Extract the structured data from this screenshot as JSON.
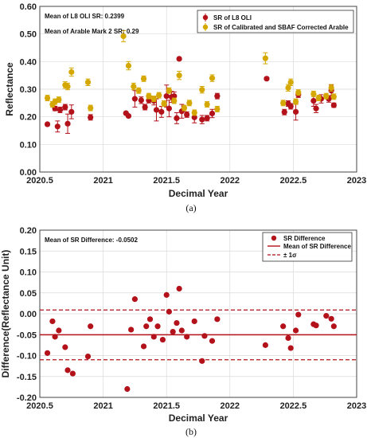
{
  "colors": {
    "red": "#b3121b",
    "gold": "#d4a800",
    "grid": "#d9d9d9",
    "axis": "#444444"
  },
  "chart_data": [
    {
      "type": "scatter",
      "caption": "(a)",
      "xlabel": "Decimal Year",
      "ylabel": "Reflectance",
      "xlim": [
        2020.5,
        2023
      ],
      "ylim": [
        0,
        0.6
      ],
      "xticks": [
        2020.5,
        2021,
        2021.5,
        2022,
        2022.5,
        2023
      ],
      "xtick_labels": [
        "2020.5",
        "2021",
        "2021.5",
        "2022",
        "2022.5",
        "2023"
      ],
      "yticks": [
        0,
        0.1,
        0.2,
        0.3,
        0.4,
        0.5,
        0.6
      ],
      "ytick_labels": [
        "0.00",
        "0.10",
        "0.20",
        "0.30",
        "0.40",
        "0.50",
        "0.60"
      ],
      "grid": true,
      "legend_position": "top-right",
      "annotations": [
        "Mean of L8 OLI SR: 0.2399",
        "Mean of Arable Mark 2 SR: 0.29"
      ],
      "series": [
        {
          "name": "SR of L8 OLI",
          "color": "#b3121b",
          "x": [
            2020.56,
            2020.62,
            2020.64,
            2020.66,
            2020.7,
            2020.72,
            2020.75,
            2020.9,
            2021.18,
            2021.2,
            2021.25,
            2021.3,
            2021.33,
            2021.36,
            2021.4,
            2021.42,
            2021.46,
            2021.5,
            2021.52,
            2021.54,
            2021.56,
            2021.58,
            2021.6,
            2021.62,
            2021.66,
            2021.72,
            2021.78,
            2021.82,
            2021.86,
            2021.9,
            2022.29,
            2022.43,
            2022.46,
            2022.48,
            2022.52,
            2022.54,
            2022.66,
            2022.68,
            2022.72,
            2022.78,
            2022.8,
            2022.82
          ],
          "y": [
            0.173,
            0.23,
            0.165,
            0.225,
            0.235,
            0.175,
            0.218,
            0.198,
            0.213,
            0.203,
            0.265,
            0.26,
            0.235,
            0.26,
            0.258,
            0.225,
            0.218,
            0.275,
            0.23,
            0.272,
            0.275,
            0.195,
            0.41,
            0.22,
            0.208,
            0.198,
            0.19,
            0.195,
            0.212,
            0.275,
            0.338,
            0.217,
            0.248,
            0.238,
            0.218,
            0.28,
            0.258,
            0.23,
            0.265,
            0.265,
            0.295,
            0.242
          ],
          "err": [
            0.005,
            0.008,
            0.02,
            0.01,
            0.01,
            0.035,
            0.025,
            0.01,
            0.005,
            0.005,
            0.03,
            0.012,
            0.01,
            0.01,
            0.015,
            0.04,
            0.02,
            0.04,
            0.03,
            0.02,
            0.015,
            0.02,
            0.005,
            0.025,
            0.01,
            0.02,
            0.015,
            0.01,
            0.015,
            0.01,
            0.005,
            0.01,
            0.01,
            0.01,
            0.03,
            0.01,
            0.02,
            0.015,
            0.015,
            0.012,
            0.02,
            0.008
          ]
        },
        {
          "name": "SR of Calibrated and SBAF Corrected Arable",
          "color": "#d4a800",
          "x": [
            2020.56,
            2020.6,
            2020.62,
            2020.65,
            2020.7,
            2020.72,
            2020.75,
            2020.88,
            2020.9,
            2021.16,
            2021.2,
            2021.24,
            2021.28,
            2021.32,
            2021.36,
            2021.4,
            2021.44,
            2021.48,
            2021.52,
            2021.56,
            2021.6,
            2021.64,
            2021.68,
            2021.72,
            2021.78,
            2021.82,
            2021.86,
            2021.9,
            2022.28,
            2022.42,
            2022.46,
            2022.48,
            2022.52,
            2022.54,
            2022.66,
            2022.7,
            2022.76,
            2022.8,
            2022.82
          ],
          "y": [
            0.268,
            0.245,
            0.255,
            0.262,
            0.315,
            0.31,
            0.362,
            0.325,
            0.232,
            0.492,
            0.385,
            0.31,
            0.295,
            0.338,
            0.275,
            0.265,
            0.278,
            0.248,
            0.295,
            0.258,
            0.35,
            0.232,
            0.25,
            0.215,
            0.298,
            0.245,
            0.34,
            0.228,
            0.412,
            0.25,
            0.305,
            0.325,
            0.255,
            0.288,
            0.283,
            0.268,
            0.275,
            0.305,
            0.273
          ],
          "err": [
            0.01,
            0.01,
            0.01,
            0.01,
            0.012,
            0.012,
            0.015,
            0.012,
            0.01,
            0.02,
            0.015,
            0.012,
            0.01,
            0.01,
            0.01,
            0.01,
            0.01,
            0.01,
            0.01,
            0.01,
            0.015,
            0.01,
            0.01,
            0.01,
            0.012,
            0.01,
            0.012,
            0.01,
            0.02,
            0.01,
            0.012,
            0.012,
            0.01,
            0.01,
            0.01,
            0.01,
            0.01,
            0.012,
            0.01
          ]
        }
      ]
    },
    {
      "type": "scatter",
      "caption": "(b)",
      "xlabel": "Decimal Year",
      "ylabel": "Difference(Reflectance Unit)",
      "xlim": [
        2020.5,
        2023
      ],
      "ylim": [
        -0.2,
        0.2
      ],
      "xticks": [
        2020.5,
        2021,
        2021.5,
        2022,
        2022.5,
        2023
      ],
      "xtick_labels": [
        "2020.5",
        "2021",
        "2021.5",
        "2022",
        "2022.5",
        "2023"
      ],
      "yticks": [
        -0.2,
        -0.15,
        -0.1,
        -0.05,
        0,
        0.05,
        0.1,
        0.15,
        0.2
      ],
      "ytick_labels": [
        "-0.20",
        "-0.15",
        "-0.10",
        "-0.05",
        "0.00",
        "0.05",
        "0.10",
        "0.15",
        "0.20"
      ],
      "grid": true,
      "legend_position": "top-right",
      "annotations": [
        "Mean of SR Difference: -0.0502"
      ],
      "mean_line": -0.0502,
      "sigma_lines": [
        0.009,
        -0.11
      ],
      "series": [
        {
          "name": "SR Difference",
          "color": "#b3121b",
          "x": [
            2020.56,
            2020.6,
            2020.62,
            2020.65,
            2020.7,
            2020.72,
            2020.76,
            2020.88,
            2020.9,
            2021.19,
            2021.22,
            2021.25,
            2021.32,
            2021.34,
            2021.37,
            2021.4,
            2021.43,
            2021.47,
            2021.5,
            2021.52,
            2021.55,
            2021.58,
            2021.6,
            2021.62,
            2021.66,
            2021.72,
            2021.78,
            2021.8,
            2021.86,
            2021.9,
            2022.28,
            2022.42,
            2022.46,
            2022.48,
            2022.52,
            2022.54,
            2022.66,
            2022.68,
            2022.76,
            2022.8,
            2022.82
          ],
          "y": [
            -0.094,
            -0.018,
            -0.055,
            -0.04,
            -0.08,
            -0.135,
            -0.143,
            -0.102,
            -0.03,
            -0.18,
            -0.038,
            0.035,
            -0.078,
            -0.03,
            -0.013,
            -0.055,
            -0.03,
            -0.062,
            0.045,
            0.005,
            -0.043,
            -0.022,
            0.06,
            -0.04,
            -0.055,
            -0.018,
            -0.113,
            -0.053,
            -0.065,
            -0.013,
            -0.075,
            -0.03,
            -0.058,
            -0.082,
            -0.04,
            -0.002,
            -0.025,
            -0.028,
            -0.005,
            -0.012,
            -0.03
          ]
        },
        {
          "name": "Mean of SR Difference",
          "color": "#b3121b"
        },
        {
          "name": "± 1σ",
          "color": "#b3121b"
        }
      ]
    }
  ]
}
